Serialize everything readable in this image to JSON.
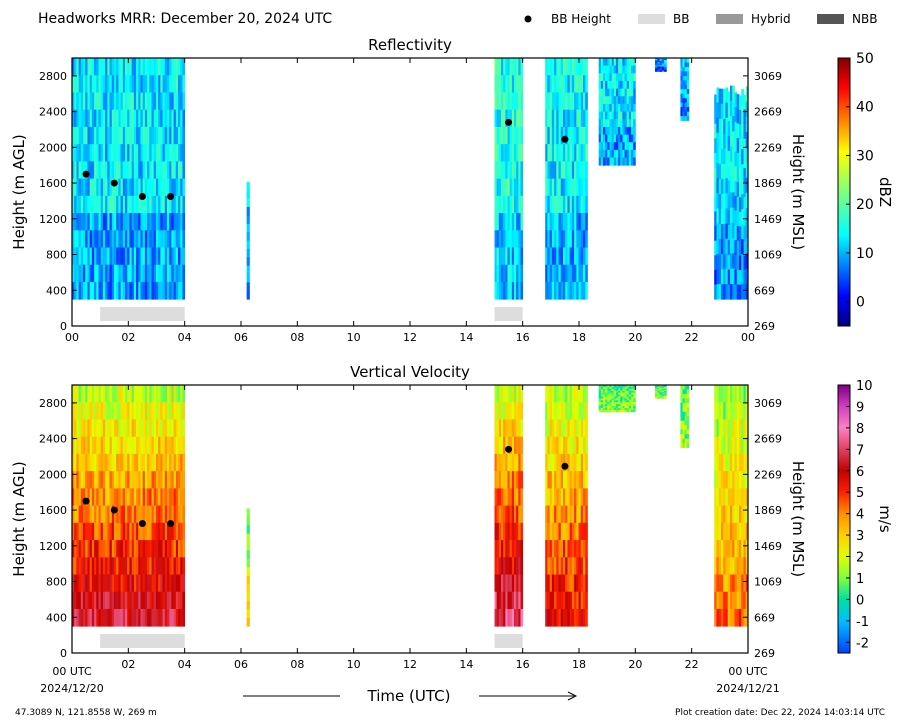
{
  "header": {
    "title": "Headworks MRR:  December 20, 2024 UTC",
    "legend": [
      {
        "label": "BB Height",
        "kind": "dot",
        "color": "#000000"
      },
      {
        "label": "BB",
        "kind": "box",
        "color": "#dddddd"
      },
      {
        "label": "Hybrid",
        "kind": "box",
        "color": "#999999"
      },
      {
        "label": "NBB",
        "kind": "box",
        "color": "#555555"
      }
    ]
  },
  "footer": {
    "coords": "47.3089 N, 121.8558 W, 269 m",
    "created": "Plot creation date: Dec 22, 2024 14:03:14 UTC",
    "xlabel": "Time (UTC)",
    "start_label": "00 UTC",
    "start_date": "2024/12/20",
    "end_label": "00 UTC",
    "end_date": "2024/12/21"
  },
  "chart_data": [
    {
      "type": "heatmap",
      "title": "Reflectivity",
      "ylabel": "Height (m AGL)",
      "y2label": "Height (m MSL)",
      "xlim": [
        0,
        24
      ],
      "ylim": [
        0,
        3000
      ],
      "x_ticks": [
        "00",
        "02",
        "04",
        "06",
        "08",
        "10",
        "12",
        "14",
        "16",
        "18",
        "20",
        "22",
        "00"
      ],
      "y_ticks": [
        0,
        400,
        800,
        1200,
        1600,
        2000,
        2400,
        2800
      ],
      "y2_ticks": [
        269,
        669,
        1069,
        1469,
        1869,
        2269,
        2669,
        3069
      ],
      "colorbar": {
        "label": "dBZ",
        "min": -5,
        "max": 50,
        "ticks": [
          0,
          10,
          20,
          30,
          40,
          50
        ]
      },
      "bb_height_points": [
        [
          0.5,
          1700
        ],
        [
          1.5,
          1600
        ],
        [
          2.5,
          1450
        ],
        [
          3.5,
          1450
        ],
        [
          15.5,
          2280
        ],
        [
          17.5,
          2090
        ]
      ],
      "bb_periods": [
        [
          1.0,
          4.0
        ],
        [
          15.0,
          16.0
        ]
      ],
      "precip_segments": [
        {
          "x": [
            0.0,
            4.0
          ],
          "top": 3000,
          "bottom": 300,
          "value": 13
        },
        {
          "x": [
            6.2,
            6.3
          ],
          "top": 1700,
          "bottom": 300,
          "value": 11
        },
        {
          "x": [
            15.0,
            16.0
          ],
          "top": 3000,
          "bottom": 300,
          "value": 16
        },
        {
          "x": [
            16.8,
            18.3
          ],
          "top": 3000,
          "bottom": 300,
          "value": 14
        },
        {
          "x": [
            18.7,
            20.0
          ],
          "top": 3000,
          "bottom": 1800,
          "value": 13
        },
        {
          "x": [
            20.7,
            21.1
          ],
          "top": 3000,
          "bottom": 2850,
          "value": 9
        },
        {
          "x": [
            21.6,
            21.9
          ],
          "top": 3000,
          "bottom": 2300,
          "value": 11
        },
        {
          "x": [
            22.8,
            24.0
          ],
          "top": 2700,
          "bottom": 300,
          "value": 12
        }
      ]
    },
    {
      "type": "heatmap",
      "title": "Vertical Velocity",
      "ylabel": "Height (m AGL)",
      "y2label": "Height (m MSL)",
      "xlim": [
        0,
        24
      ],
      "ylim": [
        0,
        3000
      ],
      "x_ticks": [
        "",
        "02",
        "04",
        "06",
        "08",
        "10",
        "12",
        "14",
        "16",
        "18",
        "20",
        "22",
        ""
      ],
      "y_ticks": [
        0,
        400,
        800,
        1200,
        1600,
        2000,
        2400,
        2800
      ],
      "y2_ticks": [
        269,
        669,
        1069,
        1469,
        1869,
        2269,
        2669,
        3069
      ],
      "colorbar": {
        "label": "m/s",
        "min": -2.5,
        "max": 10,
        "ticks": [
          -2,
          -1,
          0,
          1,
          2,
          3,
          4,
          5,
          6,
          7,
          8,
          9,
          10
        ]
      },
      "bb_height_points": [
        [
          0.5,
          1700
        ],
        [
          1.5,
          1600
        ],
        [
          2.5,
          1450
        ],
        [
          3.5,
          1450
        ],
        [
          15.5,
          2280
        ],
        [
          17.5,
          2090
        ]
      ],
      "bb_periods": [
        [
          1.0,
          4.0
        ],
        [
          15.0,
          16.0
        ]
      ],
      "precip_segments": [
        {
          "x": [
            0.0,
            4.0
          ],
          "top": 3000,
          "bottom": 300,
          "value": 4.5
        },
        {
          "x": [
            6.2,
            6.3
          ],
          "top": 1700,
          "bottom": 300,
          "value": 2
        },
        {
          "x": [
            15.0,
            16.0
          ],
          "top": 3000,
          "bottom": 300,
          "value": 5
        },
        {
          "x": [
            16.8,
            18.3
          ],
          "top": 3000,
          "bottom": 300,
          "value": 4
        },
        {
          "x": [
            18.7,
            20.0
          ],
          "top": 3000,
          "bottom": 2700,
          "value": 0.8
        },
        {
          "x": [
            20.7,
            21.1
          ],
          "top": 3000,
          "bottom": 2850,
          "value": 0.8
        },
        {
          "x": [
            21.6,
            21.9
          ],
          "top": 3000,
          "bottom": 2300,
          "value": 0.8
        },
        {
          "x": [
            22.8,
            24.0
          ],
          "top": 3000,
          "bottom": 300,
          "value": 3
        }
      ]
    }
  ]
}
